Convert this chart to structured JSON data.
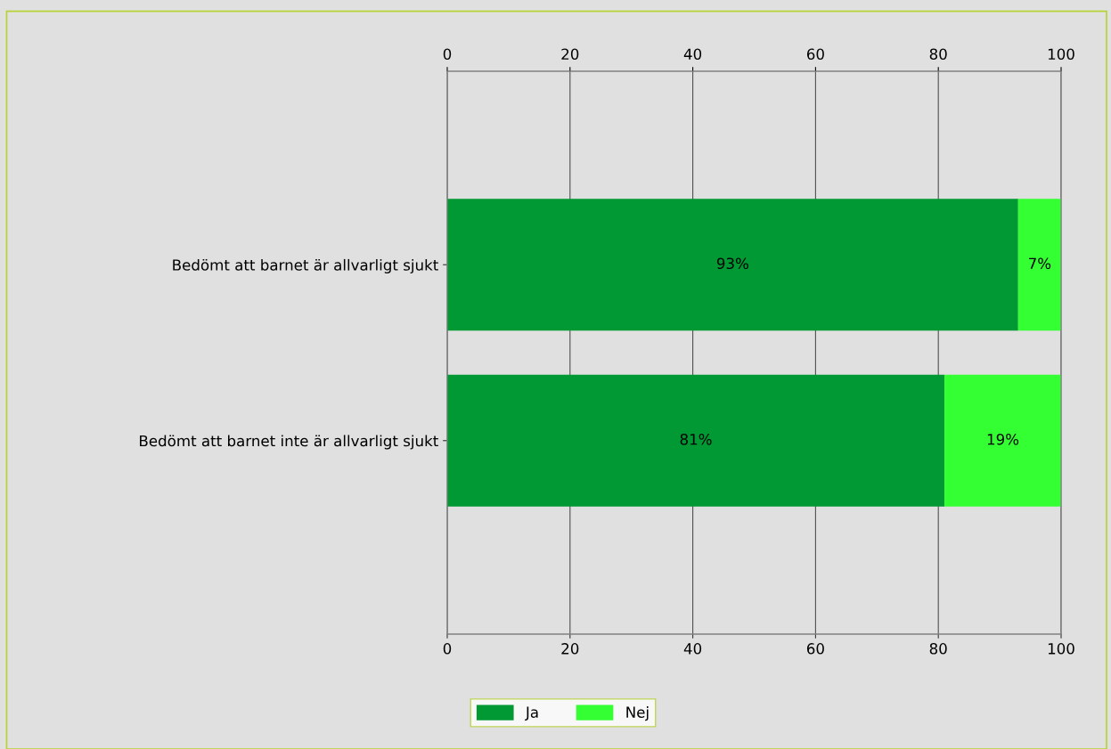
{
  "chart_data": {
    "type": "bar",
    "orientation": "horizontal",
    "stacked": true,
    "categories": [
      "Bedömt att barnet är allvarligt sjukt",
      "Bedömt att barnet inte är allvarligt sjukt"
    ],
    "series": [
      {
        "name": "Ja",
        "color": "#009933",
        "values": [
          93,
          81
        ],
        "value_labels": [
          "93%",
          "81%"
        ]
      },
      {
        "name": "Nej",
        "color": "#33ff33",
        "values": [
          7,
          19
        ],
        "value_labels": [
          "7%",
          "19%"
        ]
      }
    ],
    "xlim": [
      0,
      100
    ],
    "xticks": [
      0,
      20,
      40,
      60,
      80,
      100
    ],
    "x2lim": [
      0,
      100
    ],
    "x2ticks": [
      0,
      20,
      40,
      60,
      80,
      100
    ],
    "grid": "x",
    "legend": "bottom"
  }
}
